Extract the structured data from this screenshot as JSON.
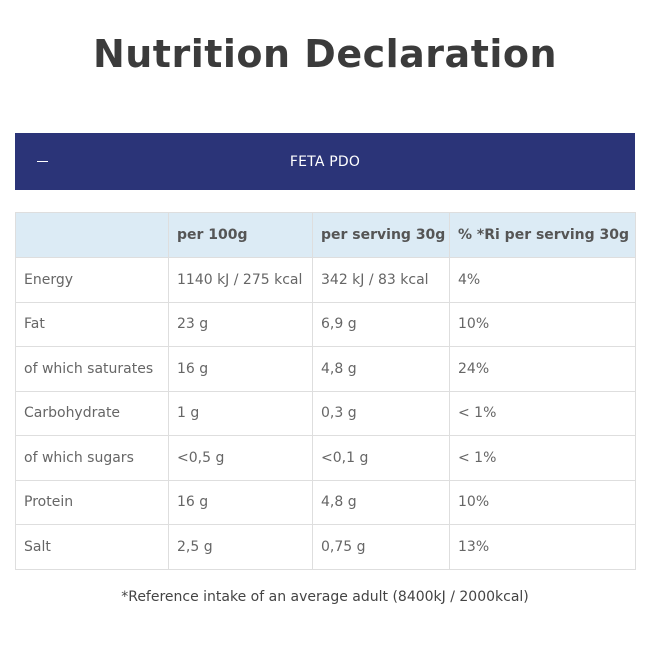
{
  "page": {
    "title": "Nutrition Declaration"
  },
  "accordion": {
    "toggle_icon": "minus-icon",
    "title": "FETA PDO",
    "expanded": true,
    "header_color": "#2b3478"
  },
  "table": {
    "header_background": "#dcebf5",
    "columns": [
      "",
      "per 100g",
      "per serving 30g",
      "% *Ri per serving 30g"
    ],
    "rows": [
      [
        "Energy",
        "1140 kJ / 275 kcal",
        "342 kJ / 83 kcal",
        "4%"
      ],
      [
        "Fat",
        "23 g",
        "6,9 g",
        "10%"
      ],
      [
        "of which saturates",
        "16 g",
        "4,8 g",
        "24%"
      ],
      [
        "Carbohydrate",
        "1 g",
        "0,3 g",
        "< 1%"
      ],
      [
        "of which sugars",
        "<0,5 g",
        "<0,1 g",
        "< 1%"
      ],
      [
        "Protein",
        "16 g",
        "4,8 g",
        "10%"
      ],
      [
        "Salt",
        "2,5 g",
        "0,75 g",
        "13%"
      ]
    ]
  },
  "footnote": "*Reference intake of an average adult (8400kJ / 2000kcal)"
}
